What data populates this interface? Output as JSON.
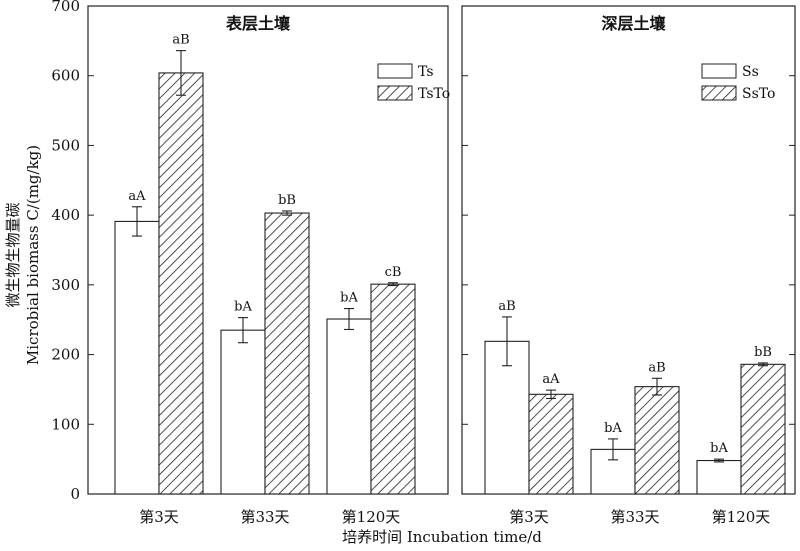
{
  "chart_data": [
    {
      "type": "bar",
      "title": "表层土壤",
      "categories": [
        "第3天",
        "第33天",
        "第120天"
      ],
      "series": [
        {
          "name": "Ts",
          "values": [
            391,
            235,
            251
          ],
          "errors": [
            21,
            18,
            15
          ],
          "labels": [
            "aA",
            "bA",
            "bA"
          ]
        },
        {
          "name": "TsTo",
          "values": [
            604,
            403,
            301
          ],
          "errors": [
            32,
            3,
            2
          ],
          "labels": [
            "aB",
            "bB",
            "cB"
          ]
        }
      ],
      "ylim": [
        0,
        700
      ],
      "yticks": [
        0,
        100,
        200,
        300,
        400,
        500,
        600,
        700
      ]
    },
    {
      "type": "bar",
      "title": "深层土壤",
      "categories": [
        "第3天",
        "第33天",
        "第120天"
      ],
      "series": [
        {
          "name": "Ss",
          "values": [
            219,
            64,
            48
          ],
          "errors": [
            35,
            15,
            2
          ],
          "labels": [
            "aB",
            "bA",
            "bA"
          ]
        },
        {
          "name": "SsTo",
          "values": [
            143,
            154,
            186
          ],
          "errors": [
            6,
            12,
            2
          ],
          "labels": [
            "aA",
            "aB",
            "bB"
          ]
        }
      ],
      "ylim": [
        0,
        700
      ],
      "yticks": [
        0,
        100,
        200,
        300,
        400,
        500,
        600,
        700
      ]
    }
  ],
  "axes": {
    "ylabel_cn": "微生物生物量碳",
    "ylabel_en": "Microbial biomass C/(mg/kg)",
    "xlabel": "培养时间 Incubation time/d"
  },
  "colors": {
    "hatch": "#222222",
    "plain": "#ffffff",
    "stroke": "#222222"
  }
}
